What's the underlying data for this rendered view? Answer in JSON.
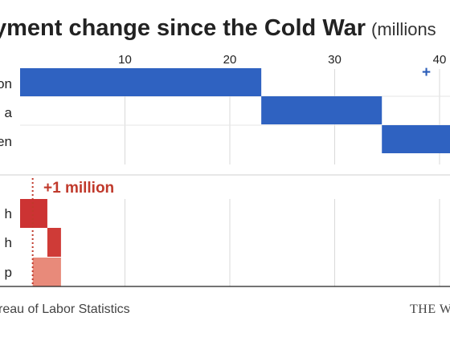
{
  "title": "yment change since the Cold War",
  "title_unit": "(millions",
  "source": "reau of Labor Statistics",
  "credit": "THE WA",
  "colors": {
    "blue": "#2f62c1",
    "red_dark": "#cc3333",
    "red_mid": "#cf3b37",
    "red_light": "#e88a7a",
    "annotation_red": "#c0392b",
    "annotation_blue": "#2b5db8",
    "grid": "#d9d9d9"
  },
  "chart_data": [
    {
      "type": "bar",
      "subtype": "waterfall",
      "x_ticks": [
        10,
        20,
        30,
        40
      ],
      "xlim": [
        0,
        41
      ],
      "grid": true,
      "categories": [
        "on",
        "a",
        "en"
      ],
      "bars": [
        {
          "category": "on",
          "start": 0,
          "end": 23
        },
        {
          "category": "a",
          "start": 23,
          "end": 34.5
        },
        {
          "category": "en",
          "start": 34.5,
          "end": 41
        }
      ],
      "annotation": "+"
    },
    {
      "type": "bar",
      "subtype": "waterfall",
      "xlim": [
        0,
        41
      ],
      "grid": true,
      "categories": [
        "h",
        "h",
        "p"
      ],
      "bars": [
        {
          "category": "h",
          "start": 0,
          "end": 2.6
        },
        {
          "category": "h",
          "start": 2.6,
          "end": 3.9
        },
        {
          "category": "p",
          "start": 1.2,
          "end": 3.9
        }
      ],
      "reference_line": 1.2,
      "annotation": "+1 million"
    }
  ]
}
